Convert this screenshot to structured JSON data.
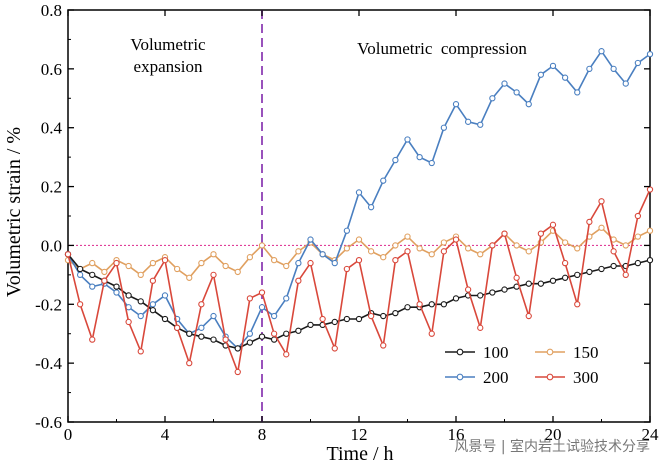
{
  "chart_data": {
    "type": "line",
    "xlabel": "Time / h",
    "ylabel": "Volumetric strain / %",
    "xlim": [
      0,
      24
    ],
    "ylim": [
      -0.6,
      0.8
    ],
    "xticks": [
      "0",
      "4",
      "8",
      "12",
      "16",
      "20",
      "24"
    ],
    "yticks": [
      "-0.6",
      "-0.4",
      "-0.2",
      "0.0",
      "0.2",
      "0.4",
      "0.6",
      "0.8"
    ],
    "reference_lines": {
      "horizontal_zero": 0.0,
      "vertical_time": 8
    },
    "annotations": {
      "left": "Volumetric\nexpansion",
      "right": "Volumetric  compression"
    },
    "legend_placement": "bottom-right",
    "watermark": "风景号 | 室内岩土试验技术分享",
    "colors": {
      "s100": "#1a1a1a",
      "s150": "#e0a060",
      "s200": "#4a7fc0",
      "s300": "#d9483b",
      "zero_line": "#e0409a",
      "divider": "#8e3fb4"
    },
    "series": [
      {
        "name": "100",
        "color": "#1a1a1a",
        "x": [
          0,
          0.5,
          1,
          1.5,
          2,
          2.5,
          3,
          3.5,
          4,
          4.5,
          5,
          5.5,
          6,
          6.5,
          7,
          7.5,
          8,
          8.5,
          9,
          9.5,
          10,
          10.5,
          11,
          11.5,
          12,
          12.5,
          13,
          13.5,
          14,
          14.5,
          15,
          15.5,
          16,
          16.5,
          17,
          17.5,
          18,
          18.5,
          19,
          19.5,
          20,
          20.5,
          21,
          21.5,
          22,
          22.5,
          23,
          23.5,
          24
        ],
        "y": [
          -0.03,
          -0.08,
          -0.1,
          -0.12,
          -0.14,
          -0.17,
          -0.19,
          -0.22,
          -0.25,
          -0.28,
          -0.3,
          -0.31,
          -0.32,
          -0.34,
          -0.35,
          -0.33,
          -0.31,
          -0.32,
          -0.3,
          -0.29,
          -0.27,
          -0.27,
          -0.26,
          -0.25,
          -0.25,
          -0.23,
          -0.24,
          -0.23,
          -0.21,
          -0.21,
          -0.2,
          -0.2,
          -0.18,
          -0.17,
          -0.17,
          -0.16,
          -0.15,
          -0.14,
          -0.13,
          -0.13,
          -0.12,
          -0.11,
          -0.1,
          -0.09,
          -0.08,
          -0.07,
          -0.07,
          -0.06,
          -0.05
        ]
      },
      {
        "name": "150",
        "color": "#e0a060",
        "x": [
          0,
          0.5,
          1,
          1.5,
          2,
          2.5,
          3,
          3.5,
          4,
          4.5,
          5,
          5.5,
          6,
          6.5,
          7,
          7.5,
          8,
          8.5,
          9,
          9.5,
          10,
          10.5,
          11,
          11.5,
          12,
          12.5,
          13,
          13.5,
          14,
          14.5,
          15,
          15.5,
          16,
          16.5,
          17,
          17.5,
          18,
          18.5,
          19,
          19.5,
          20,
          20.5,
          21,
          21.5,
          22,
          22.5,
          23,
          23.5,
          24
        ],
        "y": [
          -0.05,
          -0.08,
          -0.06,
          -0.09,
          -0.05,
          -0.07,
          -0.1,
          -0.06,
          -0.04,
          -0.08,
          -0.11,
          -0.06,
          -0.03,
          -0.07,
          -0.09,
          -0.04,
          0.0,
          -0.05,
          -0.07,
          -0.02,
          0.01,
          -0.03,
          -0.05,
          -0.01,
          0.02,
          -0.02,
          -0.04,
          0.0,
          0.03,
          -0.01,
          -0.03,
          0.01,
          0.03,
          -0.01,
          -0.03,
          0.0,
          0.04,
          0.0,
          -0.02,
          0.01,
          0.05,
          0.01,
          -0.01,
          0.03,
          0.06,
          0.02,
          0.0,
          0.03,
          0.05
        ]
      },
      {
        "name": "200",
        "color": "#4a7fc0",
        "x": [
          0,
          0.5,
          1,
          1.5,
          2,
          2.5,
          3,
          3.5,
          4,
          4.5,
          5,
          5.5,
          6,
          6.5,
          7,
          7.5,
          8,
          8.5,
          9,
          9.5,
          10,
          10.5,
          11,
          11.5,
          12,
          12.5,
          13,
          13.5,
          14,
          14.5,
          15,
          15.5,
          16,
          16.5,
          17,
          17.5,
          18,
          18.5,
          19,
          19.5,
          20,
          20.5,
          21,
          21.5,
          22,
          22.5,
          23,
          23.5,
          24
        ],
        "y": [
          -0.03,
          -0.1,
          -0.14,
          -0.13,
          -0.16,
          -0.21,
          -0.24,
          -0.2,
          -0.17,
          -0.25,
          -0.3,
          -0.28,
          -0.24,
          -0.31,
          -0.35,
          -0.3,
          -0.21,
          -0.24,
          -0.18,
          -0.06,
          0.02,
          -0.03,
          -0.06,
          0.05,
          0.18,
          0.13,
          0.22,
          0.29,
          0.36,
          0.3,
          0.28,
          0.4,
          0.48,
          0.42,
          0.41,
          0.5,
          0.55,
          0.52,
          0.48,
          0.58,
          0.61,
          0.57,
          0.52,
          0.6,
          0.66,
          0.6,
          0.55,
          0.62,
          0.65
        ]
      },
      {
        "name": "300",
        "color": "#d9483b",
        "x": [
          0,
          0.5,
          1,
          1.5,
          2,
          2.5,
          3,
          3.5,
          4,
          4.5,
          5,
          5.5,
          6,
          6.5,
          7,
          7.5,
          8,
          8.5,
          9,
          9.5,
          10,
          10.5,
          11,
          11.5,
          12,
          12.5,
          13,
          13.5,
          14,
          14.5,
          15,
          15.5,
          16,
          16.5,
          17,
          17.5,
          18,
          18.5,
          19,
          19.5,
          20,
          20.5,
          21,
          21.5,
          22,
          22.5,
          23,
          23.5,
          24
        ],
        "y": [
          -0.03,
          -0.2,
          -0.32,
          -0.12,
          -0.06,
          -0.26,
          -0.36,
          -0.12,
          -0.05,
          -0.28,
          -0.4,
          -0.2,
          -0.1,
          -0.32,
          -0.43,
          -0.18,
          -0.16,
          -0.3,
          -0.37,
          -0.12,
          -0.06,
          -0.25,
          -0.35,
          -0.08,
          -0.05,
          -0.24,
          -0.34,
          -0.05,
          -0.02,
          -0.2,
          -0.3,
          -0.02,
          0.02,
          -0.15,
          -0.28,
          0.0,
          0.04,
          -0.11,
          -0.24,
          0.04,
          0.07,
          -0.06,
          -0.2,
          0.08,
          0.15,
          -0.02,
          -0.1,
          0.1,
          0.19
        ]
      }
    ]
  }
}
